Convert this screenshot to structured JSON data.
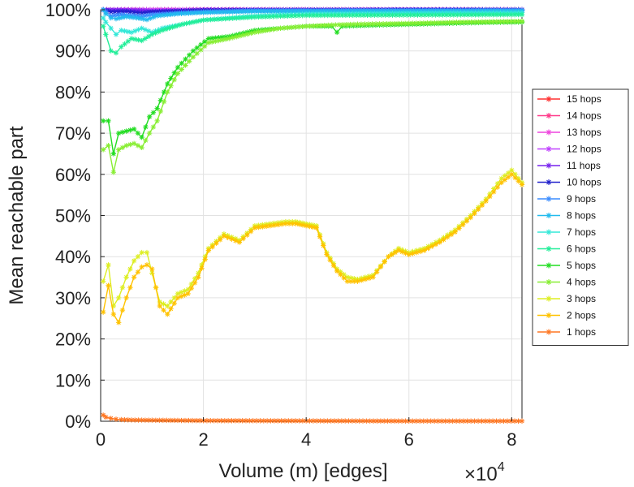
{
  "chart_data": {
    "type": "line",
    "title": "",
    "xlabel": "Volume (m) [edges]",
    "ylabel": "Mean reachable part",
    "x_multiplier_label": "×10",
    "x_multiplier_exponent": "4",
    "xlim": [
      0,
      82000
    ],
    "ylim": [
      0,
      100
    ],
    "xticks": [
      0,
      20000,
      40000,
      60000,
      80000
    ],
    "xtick_labels": [
      "0",
      "2",
      "4",
      "6",
      "8"
    ],
    "yticks": [
      0,
      10,
      20,
      30,
      40,
      50,
      60,
      70,
      80,
      90,
      100
    ],
    "ytick_labels": [
      "0%",
      "10%",
      "20%",
      "30%",
      "40%",
      "50%",
      "60%",
      "70%",
      "80%",
      "90%",
      "100%"
    ],
    "grid": true,
    "legend_position": "right",
    "marker": "star",
    "series": [
      {
        "name": "15 hops",
        "color": "#ff3030",
        "x": [
          500,
          82000
        ],
        "values": [
          100,
          100
        ]
      },
      {
        "name": "14 hops",
        "color": "#ff3a8a",
        "x": [
          500,
          82000
        ],
        "values": [
          100,
          100
        ]
      },
      {
        "name": "13 hops",
        "color": "#ee44dd",
        "x": [
          500,
          82000
        ],
        "values": [
          100,
          100
        ]
      },
      {
        "name": "12 hops",
        "color": "#c040ff",
        "x": [
          500,
          82000
        ],
        "values": [
          100,
          100
        ]
      },
      {
        "name": "11 hops",
        "color": "#7722ee",
        "x": [
          500,
          8000,
          10000,
          20000,
          82000
        ],
        "values": [
          100,
          99.8,
          99.6,
          99.9,
          100
        ]
      },
      {
        "name": "10 hops",
        "color": "#2222cc",
        "x": [
          500,
          2000,
          5000,
          8000,
          10000,
          15000,
          20000,
          82000
        ],
        "values": [
          100,
          99.5,
          99.6,
          99.2,
          99.5,
          99.7,
          99.9,
          100
        ]
      },
      {
        "name": "9 hops",
        "color": "#3a8cff",
        "x": [
          500,
          1000,
          2000,
          4000,
          6000,
          8000,
          10000,
          15000,
          20000,
          30000,
          82000
        ],
        "values": [
          100,
          99.5,
          98.5,
          98.8,
          98.6,
          98.4,
          98.8,
          99.2,
          99.5,
          99.8,
          99.9
        ]
      },
      {
        "name": "8 hops",
        "color": "#22bbee",
        "x": [
          500,
          1000,
          2000,
          3000,
          5000,
          7000,
          9000,
          11000,
          15000,
          20000,
          30000,
          82000
        ],
        "values": [
          100,
          99,
          98,
          97.8,
          98.3,
          98,
          97.6,
          98.5,
          99,
          99.3,
          99.6,
          99.7
        ]
      },
      {
        "name": "7 hops",
        "color": "#33e8d8",
        "x": [
          500,
          1000,
          2000,
          3000,
          4000,
          6000,
          8000,
          10000,
          12000,
          16000,
          20000,
          30000,
          40000,
          82000
        ],
        "values": [
          98,
          97,
          95.5,
          94,
          95,
          94.5,
          95.5,
          94.5,
          95.5,
          96.5,
          97.5,
          98.5,
          99,
          99.3
        ]
      },
      {
        "name": "6 hops",
        "color": "#22ee99",
        "x": [
          500,
          1000,
          2000,
          3000,
          4000,
          6000,
          8000,
          10000,
          12000,
          16000,
          20000,
          30000,
          40000,
          82000
        ],
        "values": [
          96,
          94,
          90,
          89.5,
          91,
          93,
          92.5,
          94,
          95,
          96.5,
          97.5,
          98.2,
          98.6,
          98.8
        ]
      },
      {
        "name": "5 hops",
        "color": "#22dd22",
        "x": [
          500,
          1500,
          2500,
          3500,
          5000,
          6500,
          8000,
          9500,
          11000,
          13000,
          15000,
          18000,
          21000,
          25000,
          30000,
          35000,
          40000,
          45000,
          46000,
          47000,
          55000,
          65000,
          75000,
          82000
        ],
        "values": [
          73,
          73,
          65,
          70,
          70.5,
          71,
          69,
          74,
          76,
          82,
          86,
          90,
          93,
          93.5,
          95,
          95.5,
          96,
          96,
          94.5,
          96,
          96.3,
          96.6,
          96.9,
          97
        ]
      },
      {
        "name": "4 hops",
        "color": "#88ee33",
        "x": [
          500,
          1500,
          2500,
          3500,
          5000,
          6500,
          8000,
          9500,
          11000,
          13000,
          15000,
          18000,
          21000,
          25000,
          30000,
          35000,
          40000,
          45000,
          50000,
          60000,
          70000,
          82000
        ],
        "values": [
          66,
          67,
          60.5,
          66,
          67,
          67.5,
          66.5,
          70,
          73,
          80,
          84.5,
          88.5,
          92,
          93,
          94.5,
          95.5,
          96,
          96.3,
          96.5,
          96.7,
          97,
          97.2
        ]
      },
      {
        "name": "3 hops",
        "color": "#ddee22",
        "x": [
          500,
          1500,
          2500,
          3500,
          5000,
          6500,
          8000,
          9000,
          10000,
          11500,
          13000,
          15000,
          17000,
          19000,
          21000,
          24000,
          27000,
          30000,
          33000,
          36000,
          38000,
          40000,
          42000,
          44000,
          46000,
          48000,
          50000,
          53000,
          56000,
          58000,
          60000,
          63000,
          66000,
          69000,
          72000,
          75000,
          78000,
          80000,
          82000
        ],
        "values": [
          34,
          38,
          28,
          30,
          35,
          39,
          41,
          41,
          36,
          29,
          28,
          31,
          32,
          36,
          42,
          45.5,
          44,
          47.5,
          48,
          48.5,
          48.5,
          48,
          47.5,
          41,
          37,
          35,
          34.5,
          35.5,
          40,
          42,
          41,
          42,
          44,
          46.5,
          50,
          54,
          59,
          61,
          58
        ]
      },
      {
        "name": "2 hops",
        "color": "#ffc200",
        "x": [
          500,
          1500,
          2500,
          3500,
          5000,
          6500,
          8000,
          9000,
          10000,
          11500,
          13000,
          15000,
          17000,
          19000,
          21000,
          24000,
          27000,
          30000,
          33000,
          36000,
          38000,
          40000,
          42000,
          44000,
          46000,
          48000,
          50000,
          53000,
          56000,
          58000,
          60000,
          63000,
          66000,
          69000,
          72000,
          75000,
          78000,
          80000,
          82000
        ],
        "values": [
          26.5,
          33,
          26,
          24,
          30,
          35,
          37.5,
          38,
          37,
          28,
          26,
          30,
          31,
          35,
          41.5,
          45,
          43.5,
          47,
          47.5,
          48,
          48,
          47.5,
          47,
          40.5,
          36.5,
          34,
          34,
          35,
          40,
          41.5,
          40.5,
          41.5,
          43.5,
          46,
          49.5,
          53.5,
          58,
          60,
          57.5
        ]
      },
      {
        "name": "1 hops",
        "color": "#ff7722",
        "x": [
          500,
          1000,
          2000,
          3000,
          4000,
          6000,
          10000,
          20000,
          40000,
          60000,
          82000
        ],
        "values": [
          1.5,
          1.0,
          0.7,
          0.5,
          0.4,
          0.3,
          0.25,
          0.15,
          0.1,
          0.05,
          0.05
        ]
      }
    ]
  }
}
